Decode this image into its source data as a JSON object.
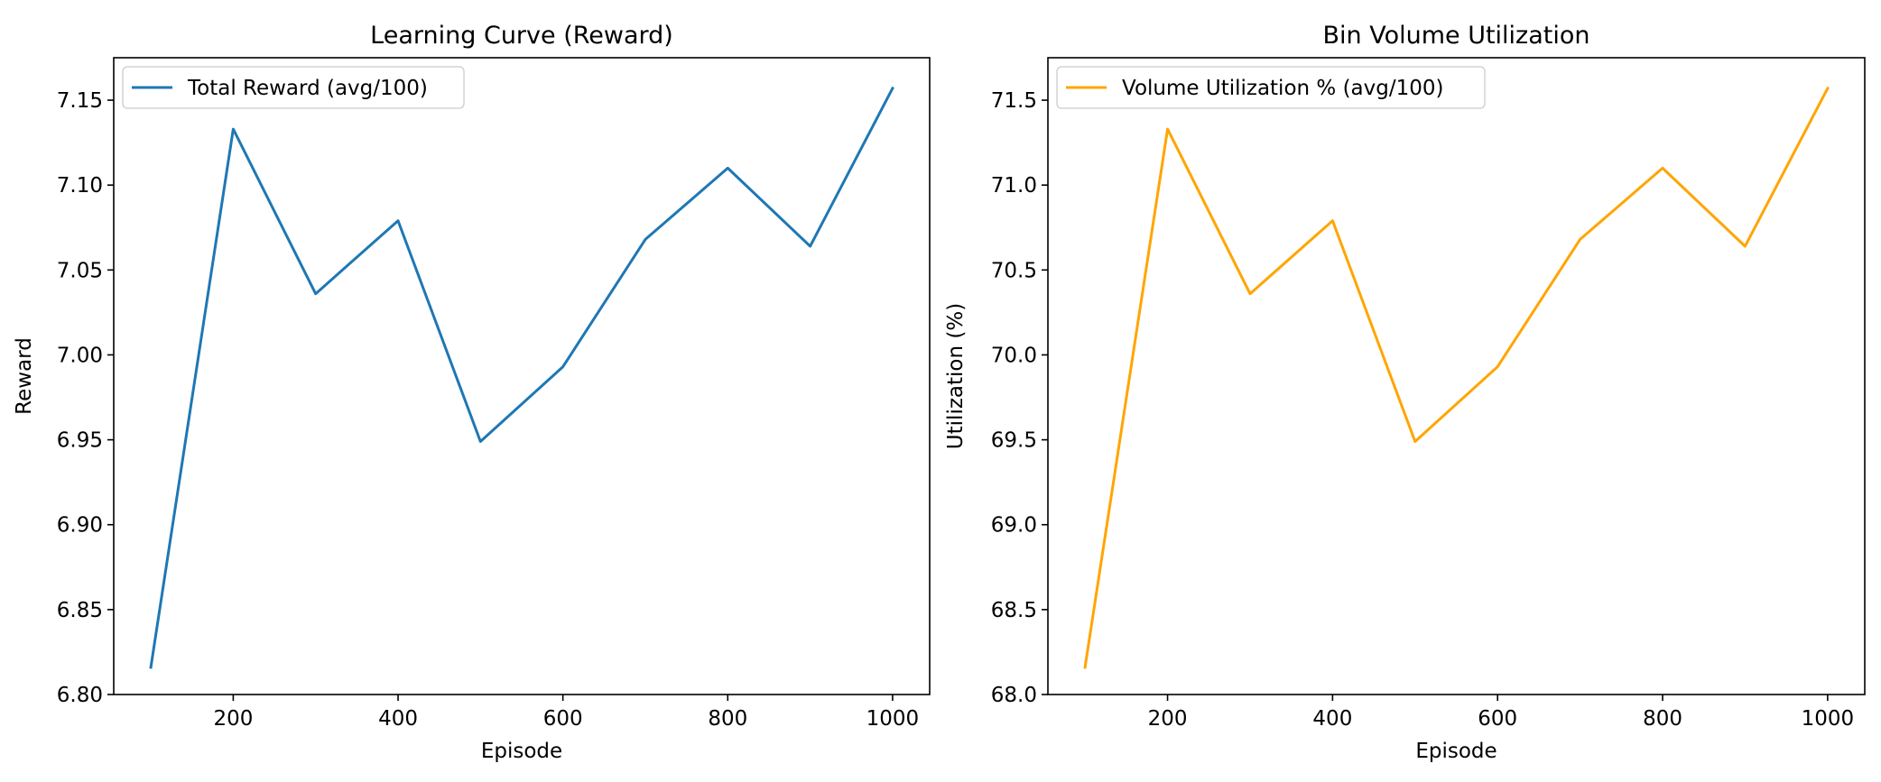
{
  "chart_data": [
    {
      "type": "line",
      "title": "Learning Curve (Reward)",
      "xlabel": "Episode",
      "ylabel": "Reward",
      "xlim": [
        55,
        1045
      ],
      "ylim": [
        6.8,
        7.175
      ],
      "xticks": [
        200,
        400,
        600,
        800,
        1000
      ],
      "yticks": [
        6.8,
        6.85,
        6.9,
        6.95,
        7.0,
        7.05,
        7.1,
        7.15
      ],
      "ytick_labels": [
        "6.80",
        "6.85",
        "6.90",
        "6.95",
        "7.00",
        "7.05",
        "7.10",
        "7.15"
      ],
      "grid": false,
      "legend_position": "top-left",
      "x": [
        100,
        200,
        300,
        400,
        500,
        600,
        700,
        800,
        900,
        1000
      ],
      "series": [
        {
          "name": "Total Reward (avg/100)",
          "color": "#1f77b4",
          "values": [
            6.816,
            7.133,
            7.036,
            7.079,
            6.949,
            6.993,
            7.068,
            7.11,
            7.064,
            7.157
          ]
        }
      ]
    },
    {
      "type": "line",
      "title": "Bin Volume Utilization",
      "xlabel": "Episode",
      "ylabel": "Utilization (%)",
      "xlim": [
        55,
        1045
      ],
      "ylim": [
        68.0,
        71.75
      ],
      "xticks": [
        200,
        400,
        600,
        800,
        1000
      ],
      "yticks": [
        68.0,
        68.5,
        69.0,
        69.5,
        70.0,
        70.5,
        71.0,
        71.5
      ],
      "ytick_labels": [
        "68.0",
        "68.5",
        "69.0",
        "69.5",
        "70.0",
        "70.5",
        "71.0",
        "71.5"
      ],
      "grid": false,
      "legend_position": "top-left",
      "x": [
        100,
        200,
        300,
        400,
        500,
        600,
        700,
        800,
        900,
        1000
      ],
      "series": [
        {
          "name": "Volume Utilization % (avg/100)",
          "color": "#ffa500",
          "values": [
            68.16,
            71.33,
            70.36,
            70.79,
            69.49,
            69.93,
            70.68,
            71.1,
            70.64,
            71.57
          ]
        }
      ]
    }
  ]
}
